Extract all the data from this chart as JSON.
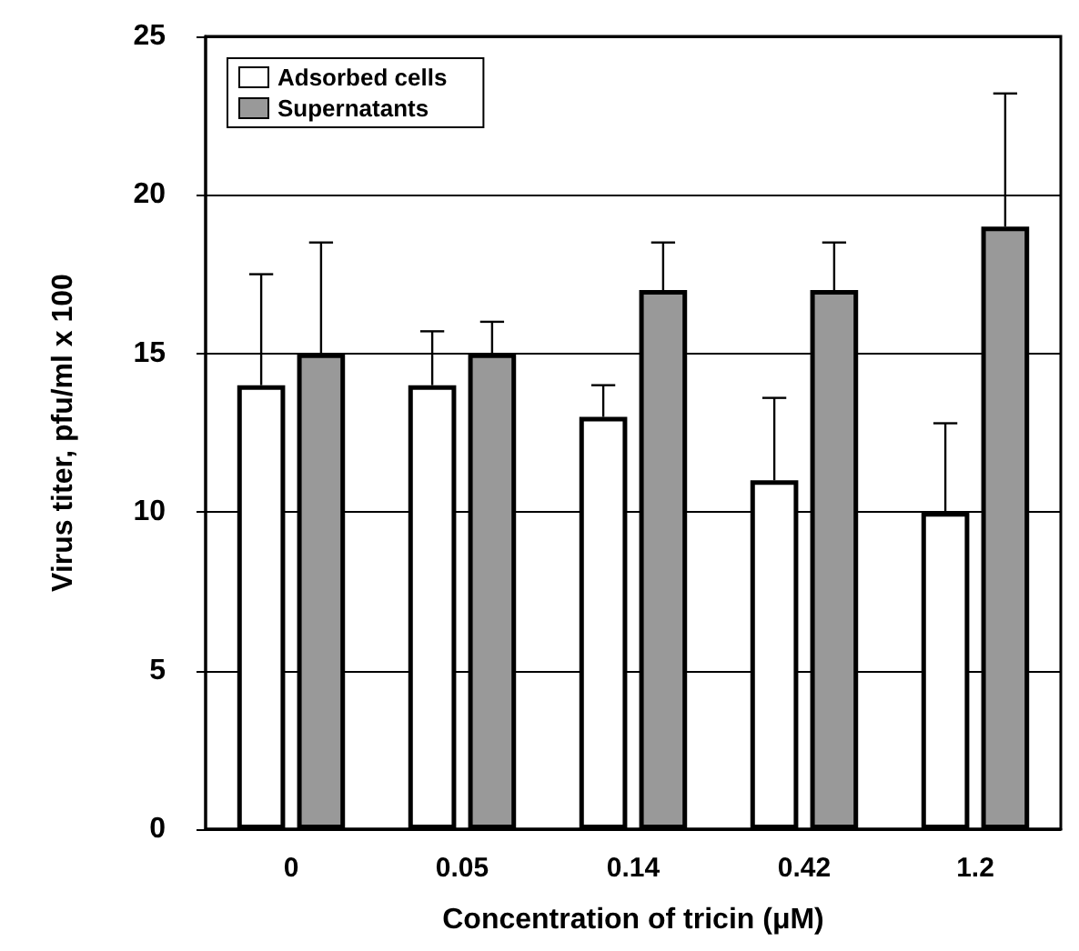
{
  "chart_data": {
    "type": "bar",
    "xlabel": "Concentration of tricin (μM)",
    "ylabel": "Virus titer, pfu/ml x 100",
    "categories": [
      "0",
      "0.05",
      "0.14",
      "0.42",
      "1.2"
    ],
    "series": [
      {
        "name": "Adsorbed cells",
        "color": "#ffffff",
        "values": [
          14,
          14,
          13,
          11,
          10
        ],
        "errors": [
          [
            14,
            17.5
          ],
          [
            14,
            15.7
          ],
          [
            13,
            14
          ],
          [
            11,
            13.6
          ],
          [
            10,
            12.8
          ]
        ]
      },
      {
        "name": "Supernatants",
        "color": "#999999",
        "values": [
          15,
          15,
          17,
          17,
          19
        ],
        "errors": [
          [
            15,
            18.5
          ],
          [
            15,
            16
          ],
          [
            17,
            18.5
          ],
          [
            17,
            18.5
          ],
          [
            19,
            23.2
          ]
        ]
      }
    ],
    "ylim": [
      0,
      25
    ],
    "yticks": [
      0,
      5,
      10,
      15,
      20,
      25
    ],
    "grid": "y",
    "legend": "top left"
  }
}
